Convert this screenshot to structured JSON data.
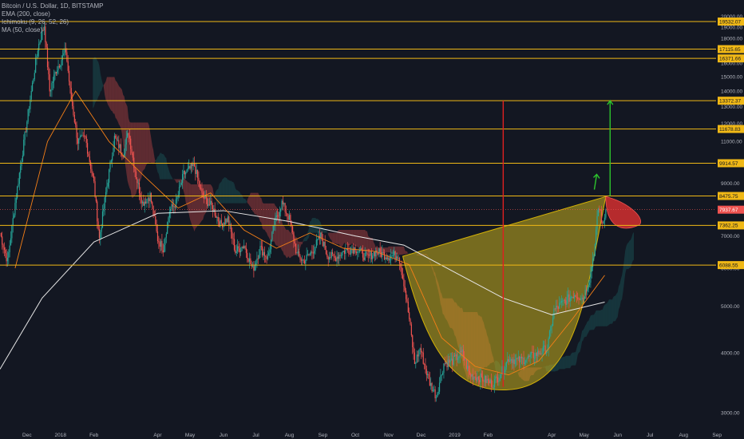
{
  "legend": {
    "symbol": "Bitcoin / U.S. Dollar, 1D, BITSTAMP",
    "ema": "EMA (200, close)",
    "ichimoku": "Ichimoku (9, 26, 52, 26)",
    "ma": "MA (50, close)"
  },
  "colors": {
    "background": "#131722",
    "level_line": "#f0b816",
    "level_label_bg": "#f0b816",
    "level_label_text": "#131722",
    "current_price_bg": "#ef5350",
    "up_candle": "#26a69a",
    "down_candle": "#ef5350",
    "cup_fill": "#c8b01e",
    "target_up": "#2dc52d",
    "target_measure": "#e02020",
    "ema_line": "#e6e6e6",
    "ma_line": "#f57f17"
  },
  "chart_data": {
    "type": "candlestick",
    "title": "Bitcoin / U.S. Dollar, 1D, BITSTAMP",
    "y_axis": {
      "scale": "log",
      "ylim": [
        2700,
        21000
      ],
      "ticks": [
        "20000.00",
        "19000.00",
        "18000.00",
        "17000.00",
        "16000.00",
        "15000.00",
        "14000.00",
        "13000.00",
        "12000.00",
        "11000.00",
        "10000.00",
        "9000.00",
        "8000.00",
        "7000.00",
        "6000.00",
        "5000.00",
        "4000.00",
        "3000.00"
      ],
      "tick_values": [
        20000,
        19000,
        18000,
        17000,
        16000,
        15000,
        14000,
        13000,
        12000,
        11000,
        10000,
        9000,
        8000,
        7000,
        6000,
        5000,
        4000,
        3000
      ]
    },
    "x_axis": {
      "ticks": [
        "Dec",
        "2018",
        "Feb",
        "Apr",
        "May",
        "Jun",
        "Jul",
        "Aug",
        "Sep",
        "Oct",
        "Nov",
        "Dec",
        "2019",
        "Feb",
        "Apr",
        "May",
        "Jun",
        "Jul",
        "Aug",
        "Sep"
      ],
      "tick_dates": [
        "2017-12-01",
        "2018-01-01",
        "2018-02-01",
        "2018-04-01",
        "2018-05-01",
        "2018-06-01",
        "2018-07-01",
        "2018-08-01",
        "2018-09-01",
        "2018-10-01",
        "2018-11-01",
        "2018-12-01",
        "2019-01-01",
        "2019-02-01",
        "2019-04-01",
        "2019-05-01",
        "2019-06-01",
        "2019-07-01",
        "2019-08-01",
        "2019-09-01"
      ],
      "range": [
        "2017-11-06",
        "2019-09-26"
      ]
    },
    "horizontal_levels": [
      {
        "label": "19532.07",
        "value": 19532.07
      },
      {
        "label": "17115.65",
        "value": 17115.65
      },
      {
        "label": "16371.66",
        "value": 16371.66
      },
      {
        "label": "13372.37",
        "value": 13372.37
      },
      {
        "label": "11678.83",
        "value": 11678.83
      },
      {
        "label": "9914.57",
        "value": 9914.57
      },
      {
        "label": "8475.75",
        "value": 8475.75
      },
      {
        "label": "7362.25",
        "value": 7362.25
      },
      {
        "label": "6088.55",
        "value": 6088.55
      }
    ],
    "current_price": {
      "label": "7937.67",
      "value": 7937.67
    },
    "price_path": [
      [
        "2017-11-06",
        7100
      ],
      [
        "2017-11-13",
        6200
      ],
      [
        "2017-11-20",
        8200
      ],
      [
        "2017-11-27",
        10500
      ],
      [
        "2017-12-04",
        13500
      ],
      [
        "2017-12-11",
        17200
      ],
      [
        "2017-12-17",
        19200
      ],
      [
        "2017-12-22",
        14000
      ],
      [
        "2017-12-28",
        15500
      ],
      [
        "2018-01-06",
        17000
      ],
      [
        "2018-01-10",
        14000
      ],
      [
        "2018-01-17",
        11000
      ],
      [
        "2018-01-24",
        11200
      ],
      [
        "2018-02-01",
        9000
      ],
      [
        "2018-02-06",
        6900
      ],
      [
        "2018-02-12",
        8600
      ],
      [
        "2018-02-20",
        11200
      ],
      [
        "2018-02-28",
        10400
      ],
      [
        "2018-03-05",
        11500
      ],
      [
        "2018-03-12",
        9300
      ],
      [
        "2018-03-18",
        8200
      ],
      [
        "2018-03-25",
        8500
      ],
      [
        "2018-04-01",
        6900
      ],
      [
        "2018-04-06",
        6600
      ],
      [
        "2018-04-12",
        7900
      ],
      [
        "2018-04-18",
        8200
      ],
      [
        "2018-04-25",
        9400
      ],
      [
        "2018-05-05",
        9800
      ],
      [
        "2018-05-12",
        8500
      ],
      [
        "2018-05-22",
        8000
      ],
      [
        "2018-05-29",
        7400
      ],
      [
        "2018-06-05",
        7600
      ],
      [
        "2018-06-12",
        6500
      ],
      [
        "2018-06-20",
        6700
      ],
      [
        "2018-06-28",
        5950
      ],
      [
        "2018-07-05",
        6600
      ],
      [
        "2018-07-12",
        6300
      ],
      [
        "2018-07-18",
        7400
      ],
      [
        "2018-07-25",
        8200
      ],
      [
        "2018-08-01",
        7600
      ],
      [
        "2018-08-08",
        6400
      ],
      [
        "2018-08-14",
        6200
      ],
      [
        "2018-08-22",
        6500
      ],
      [
        "2018-08-30",
        7000
      ],
      [
        "2018-09-05",
        6400
      ],
      [
        "2018-09-12",
        6300
      ],
      [
        "2018-09-20",
        6500
      ],
      [
        "2018-10-01",
        6600
      ],
      [
        "2018-10-12",
        6300
      ],
      [
        "2018-10-20",
        6500
      ],
      [
        "2018-11-01",
        6350
      ],
      [
        "2018-11-10",
        6400
      ],
      [
        "2018-11-15",
        5600
      ],
      [
        "2018-11-20",
        4700
      ],
      [
        "2018-11-25",
        3800
      ],
      [
        "2018-11-30",
        4100
      ],
      [
        "2018-12-08",
        3500
      ],
      [
        "2018-12-15",
        3250
      ],
      [
        "2018-12-22",
        3800
      ],
      [
        "2018-12-30",
        3850
      ],
      [
        "2019-01-08",
        4000
      ],
      [
        "2019-01-15",
        3600
      ],
      [
        "2019-01-25",
        3550
      ],
      [
        "2019-02-05",
        3450
      ],
      [
        "2019-02-12",
        3600
      ],
      [
        "2019-02-20",
        3900
      ],
      [
        "2019-03-01",
        3850
      ],
      [
        "2019-03-10",
        3900
      ],
      [
        "2019-03-20",
        4000
      ],
      [
        "2019-03-28",
        4100
      ],
      [
        "2019-04-03",
        4900
      ],
      [
        "2019-04-12",
        5100
      ],
      [
        "2019-04-22",
        5300
      ],
      [
        "2019-04-30",
        5200
      ],
      [
        "2019-05-06",
        5700
      ],
      [
        "2019-05-11",
        6700
      ],
      [
        "2019-05-14",
        8000
      ],
      [
        "2019-05-16",
        7900
      ],
      [
        "2019-05-18",
        7300
      ],
      [
        "2019-05-21",
        7950
      ]
    ],
    "ema_200": [
      [
        "2017-11-06",
        3700
      ],
      [
        "2017-12-15",
        5200
      ],
      [
        "2018-02-01",
        6800
      ],
      [
        "2018-04-01",
        7800
      ],
      [
        "2018-06-01",
        7900
      ],
      [
        "2018-08-01",
        7500
      ],
      [
        "2018-10-01",
        7000
      ],
      [
        "2018-11-15",
        6700
      ],
      [
        "2018-12-31",
        5900
      ],
      [
        "2019-02-15",
        5200
      ],
      [
        "2019-04-01",
        4800
      ],
      [
        "2019-05-20",
        5100
      ]
    ],
    "ma_50": [
      [
        "2017-11-20",
        6000
      ],
      [
        "2017-12-20",
        11000
      ],
      [
        "2018-01-15",
        14000
      ],
      [
        "2018-02-15",
        11000
      ],
      [
        "2018-03-20",
        9300
      ],
      [
        "2018-04-20",
        8000
      ],
      [
        "2018-05-20",
        8600
      ],
      [
        "2018-06-20",
        7200
      ],
      [
        "2018-07-20",
        6600
      ],
      [
        "2018-08-20",
        7100
      ],
      [
        "2018-09-20",
        6600
      ],
      [
        "2018-10-20",
        6500
      ],
      [
        "2018-11-20",
        6100
      ],
      [
        "2018-12-20",
        4300
      ],
      [
        "2019-01-20",
        3750
      ],
      [
        "2019-02-20",
        3600
      ],
      [
        "2019-03-20",
        3850
      ],
      [
        "2019-04-20",
        4700
      ],
      [
        "2019-05-20",
        5800
      ]
    ],
    "projections": {
      "measured_move_start": [
        "2019-02-15",
        3400
      ],
      "measured_move_end": [
        "2019-02-15",
        13372.37
      ],
      "target_arrow_start": [
        "2019-05-25",
        8475.75
      ],
      "target_arrow_end": [
        "2019-05-25",
        13372.37
      ],
      "small_arrow_start": [
        "2019-05-20",
        8475.75
      ],
      "small_arrow_end": [
        "2019-05-20",
        9400
      ]
    }
  }
}
